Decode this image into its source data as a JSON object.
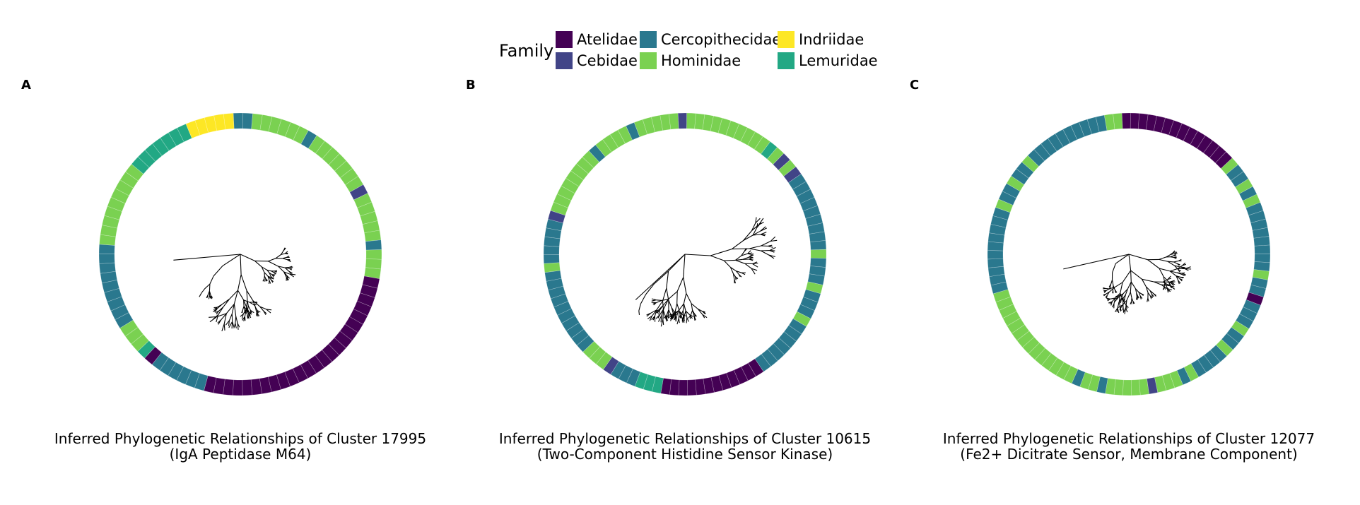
{
  "legend": {
    "title": "Family",
    "entries": [
      {
        "label": "Atelidae",
        "color": "#440154"
      },
      {
        "label": "Cebidae",
        "color": "#414487"
      },
      {
        "label": "Cercopithecidae",
        "color": "#2a788e"
      },
      {
        "label": "Hominidae",
        "color": "#7ad151"
      },
      {
        "label": "Indriidae",
        "color": "#fde725"
      },
      {
        "label": "Lemuridae",
        "color": "#22a884"
      }
    ]
  },
  "chart_data": [
    {
      "type": "phylogenetic-tree-ring",
      "panel_label": "A",
      "title_line1": "Inferred Phylogenetic Relationships of Cluster 17995",
      "title_line2": "(IgA Peptidase M64)",
      "ring_segments": [
        {
          "family": "Cercopithecidae",
          "count": 2
        },
        {
          "family": "Hominidae",
          "count": 6
        },
        {
          "family": "Cercopithecidae",
          "count": 1
        },
        {
          "family": "Hominidae",
          "count": 7
        },
        {
          "family": "Cebidae",
          "count": 1
        },
        {
          "family": "Hominidae",
          "count": 5
        },
        {
          "family": "Cercopithecidae",
          "count": 1
        },
        {
          "family": "Hominidae",
          "count": 3
        },
        {
          "family": "Atelidae",
          "count": 24
        },
        {
          "family": "Cercopithecidae",
          "count": 6
        },
        {
          "family": "Atelidae",
          "count": 1
        },
        {
          "family": "Lemuridae",
          "count": 1
        },
        {
          "family": "Hominidae",
          "count": 3
        },
        {
          "family": "Cercopithecidae",
          "count": 9
        },
        {
          "family": "Hominidae",
          "count": 9
        },
        {
          "family": "Lemuridae",
          "count": 7
        },
        {
          "family": "Indriidae",
          "count": 5
        }
      ]
    },
    {
      "type": "phylogenetic-tree-ring",
      "panel_label": "B",
      "title_line1": "Inferred Phylogenetic Relationships of Cluster 10615",
      "title_line2": "(Two-Component Histidine Sensor Kinase)",
      "ring_segments": [
        {
          "family": "Cebidae",
          "count": 1
        },
        {
          "family": "Hominidae",
          "count": 10
        },
        {
          "family": "Lemuridae",
          "count": 1
        },
        {
          "family": "Hominidae",
          "count": 1
        },
        {
          "family": "Cebidae",
          "count": 1
        },
        {
          "family": "Hominidae",
          "count": 1
        },
        {
          "family": "Cebidae",
          "count": 1
        },
        {
          "family": "Cercopithecidae",
          "count": 9
        },
        {
          "family": "Hominidae",
          "count": 1
        },
        {
          "family": "Cercopithecidae",
          "count": 3
        },
        {
          "family": "Hominidae",
          "count": 1
        },
        {
          "family": "Cercopithecidae",
          "count": 3
        },
        {
          "family": "Hominidae",
          "count": 1
        },
        {
          "family": "Cercopithecidae",
          "count": 7
        },
        {
          "family": "Atelidae",
          "count": 12
        },
        {
          "family": "Lemuridae",
          "count": 3
        },
        {
          "family": "Cercopithecidae",
          "count": 3
        },
        {
          "family": "Cebidae",
          "count": 1
        },
        {
          "family": "Hominidae",
          "count": 3
        },
        {
          "family": "Cercopithecidae",
          "count": 10
        },
        {
          "family": "Hominidae",
          "count": 1
        },
        {
          "family": "Cercopithecidae",
          "count": 5
        },
        {
          "family": "Cebidae",
          "count": 1
        },
        {
          "family": "Hominidae",
          "count": 8
        },
        {
          "family": "Cercopithecidae",
          "count": 1
        },
        {
          "family": "Hominidae",
          "count": 4
        },
        {
          "family": "Cercopithecidae",
          "count": 1
        },
        {
          "family": "Hominidae",
          "count": 5
        }
      ]
    },
    {
      "type": "phylogenetic-tree-ring",
      "panel_label": "C",
      "title_line1": "Inferred Phylogenetic Relationships of Cluster 12077",
      "title_line2": "(Fe2+ Dicitrate Sensor, Membrane Component)",
      "ring_segments": [
        {
          "family": "Atelidae",
          "count": 14
        },
        {
          "family": "Hominidae",
          "count": 1
        },
        {
          "family": "Cercopithecidae",
          "count": 2
        },
        {
          "family": "Hominidae",
          "count": 1
        },
        {
          "family": "Cercopithecidae",
          "count": 1
        },
        {
          "family": "Hominidae",
          "count": 1
        },
        {
          "family": "Cercopithecidae",
          "count": 8
        },
        {
          "family": "Hominidae",
          "count": 1
        },
        {
          "family": "Cercopithecidae",
          "count": 2
        },
        {
          "family": "Atelidae",
          "count": 1
        },
        {
          "family": "Cercopithecidae",
          "count": 3
        },
        {
          "family": "Hominidae",
          "count": 1
        },
        {
          "family": "Cercopithecidae",
          "count": 2
        },
        {
          "family": "Hominidae",
          "count": 1
        },
        {
          "family": "Cercopithecidae",
          "count": 4
        },
        {
          "family": "Hominidae",
          "count": 1
        },
        {
          "family": "Cercopithecidae",
          "count": 1
        },
        {
          "family": "Hominidae",
          "count": 3
        },
        {
          "family": "Cebidae",
          "count": 1
        },
        {
          "family": "Hominidae",
          "count": 5
        },
        {
          "family": "Cercopithecidae",
          "count": 1
        },
        {
          "family": "Hominidae",
          "count": 2
        },
        {
          "family": "Cercopithecidae",
          "count": 1
        },
        {
          "family": "Hominidae",
          "count": 14
        },
        {
          "family": "Cercopithecidae",
          "count": 10
        },
        {
          "family": "Hominidae",
          "count": 1
        },
        {
          "family": "Cercopithecidae",
          "count": 2
        },
        {
          "family": "Hominidae",
          "count": 1
        },
        {
          "family": "Cercopithecidae",
          "count": 2
        },
        {
          "family": "Hominidae",
          "count": 1
        },
        {
          "family": "Cercopithecidae",
          "count": 10
        },
        {
          "family": "Hominidae",
          "count": 2
        }
      ]
    }
  ]
}
